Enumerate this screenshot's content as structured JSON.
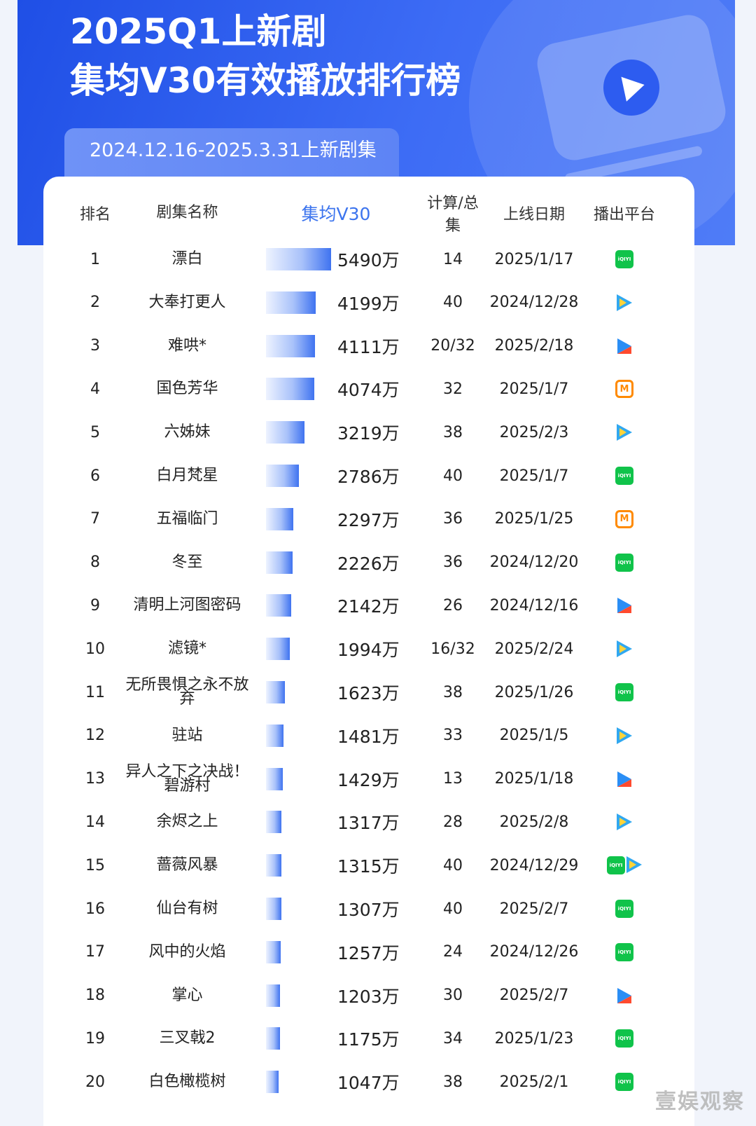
{
  "header": {
    "title_line1": "2025Q1上新剧",
    "title_line2": "集均V30有效播放排行榜",
    "date_range": "2024.12.16-2025.3.31上新剧集"
  },
  "columns": {
    "rank": "排名",
    "name": "剧集名称",
    "v30": "集均V30",
    "episodes": "计算/总集",
    "date": "上线日期",
    "platform": "播出平台"
  },
  "colors": {
    "banner": "#2d5cf0",
    "accent": "#3c74ee",
    "iqiyi": "#10c34a",
    "tencent": "#31a8f0",
    "youku": "#2a8ef5",
    "mgtv": "#ff8a00"
  },
  "chart_data": {
    "type": "table",
    "value_unit": "万",
    "series": [
      {
        "values": [
          5490,
          4199,
          4111,
          4074,
          3219,
          2786,
          2297,
          2226,
          2142,
          1994,
          1623,
          1481,
          1429,
          1317,
          1315,
          1307,
          1257,
          1203,
          1175,
          1047
        ]
      }
    ],
    "rows": [
      {
        "rank": "1",
        "name": "漂白",
        "value": 5490,
        "value_label": "5490万",
        "episodes": "14",
        "date": "2025/1/17",
        "platforms": [
          "iqiyi"
        ]
      },
      {
        "rank": "2",
        "name": "大奉打更人",
        "value": 4199,
        "value_label": "4199万",
        "episodes": "40",
        "date": "2024/12/28",
        "platforms": [
          "tencent"
        ]
      },
      {
        "rank": "3",
        "name": "难哄*",
        "value": 4111,
        "value_label": "4111万",
        "episodes": "20/32",
        "date": "2025/2/18",
        "platforms": [
          "youku"
        ]
      },
      {
        "rank": "4",
        "name": "国色芳华",
        "value": 4074,
        "value_label": "4074万",
        "episodes": "32",
        "date": "2025/1/7",
        "platforms": [
          "mgtv"
        ]
      },
      {
        "rank": "5",
        "name": "六姊妹",
        "value": 3219,
        "value_label": "3219万",
        "episodes": "38",
        "date": "2025/2/3",
        "platforms": [
          "tencent"
        ]
      },
      {
        "rank": "6",
        "name": "白月梵星",
        "value": 2786,
        "value_label": "2786万",
        "episodes": "40",
        "date": "2025/1/7",
        "platforms": [
          "iqiyi"
        ]
      },
      {
        "rank": "7",
        "name": "五福临门",
        "value": 2297,
        "value_label": "2297万",
        "episodes": "36",
        "date": "2025/1/25",
        "platforms": [
          "mgtv"
        ]
      },
      {
        "rank": "8",
        "name": "冬至",
        "value": 2226,
        "value_label": "2226万",
        "episodes": "36",
        "date": "2024/12/20",
        "platforms": [
          "iqiyi"
        ]
      },
      {
        "rank": "9",
        "name": "清明上河图密码",
        "value": 2142,
        "value_label": "2142万",
        "episodes": "26",
        "date": "2024/12/16",
        "platforms": [
          "youku"
        ]
      },
      {
        "rank": "10",
        "name": "滤镜*",
        "value": 1994,
        "value_label": "1994万",
        "episodes": "16/32",
        "date": "2025/2/24",
        "platforms": [
          "tencent"
        ]
      },
      {
        "rank": "11",
        "name": "无所畏惧之永不放弃",
        "name_lines": [
          "无所畏惧之永不放",
          "弃"
        ],
        "value": 1623,
        "value_label": "1623万",
        "episodes": "38",
        "date": "2025/1/26",
        "platforms": [
          "iqiyi"
        ]
      },
      {
        "rank": "12",
        "name": "驻站",
        "value": 1481,
        "value_label": "1481万",
        "episodes": "33",
        "date": "2025/1/5",
        "platforms": [
          "tencent"
        ]
      },
      {
        "rank": "13",
        "name": "异人之下之决战！碧游村",
        "name_lines": [
          "异人之下之决战！",
          "碧游村"
        ],
        "value": 1429,
        "value_label": "1429万",
        "episodes": "13",
        "date": "2025/1/18",
        "platforms": [
          "youku"
        ]
      },
      {
        "rank": "14",
        "name": "余烬之上",
        "value": 1317,
        "value_label": "1317万",
        "episodes": "28",
        "date": "2025/2/8",
        "platforms": [
          "tencent"
        ]
      },
      {
        "rank": "15",
        "name": "蔷薇风暴",
        "value": 1315,
        "value_label": "1315万",
        "episodes": "40",
        "date": "2024/12/29",
        "platforms": [
          "iqiyi",
          "tencent"
        ]
      },
      {
        "rank": "16",
        "name": "仙台有树",
        "value": 1307,
        "value_label": "1307万",
        "episodes": "40",
        "date": "2025/2/7",
        "platforms": [
          "iqiyi"
        ]
      },
      {
        "rank": "17",
        "name": "风中的火焰",
        "value": 1257,
        "value_label": "1257万",
        "episodes": "24",
        "date": "2024/12/26",
        "platforms": [
          "iqiyi"
        ]
      },
      {
        "rank": "18",
        "name": "掌心",
        "value": 1203,
        "value_label": "1203万",
        "episodes": "30",
        "date": "2025/2/7",
        "platforms": [
          "youku"
        ]
      },
      {
        "rank": "19",
        "name": "三叉戟2",
        "value": 1175,
        "value_label": "1175万",
        "episodes": "34",
        "date": "2025/1/23",
        "platforms": [
          "iqiyi"
        ]
      },
      {
        "rank": "20",
        "name": "白色橄榄树",
        "value": 1047,
        "value_label": "1047万",
        "episodes": "38",
        "date": "2025/2/1",
        "platforms": [
          "iqiyi"
        ]
      }
    ]
  },
  "watermark": "壹娱观察"
}
